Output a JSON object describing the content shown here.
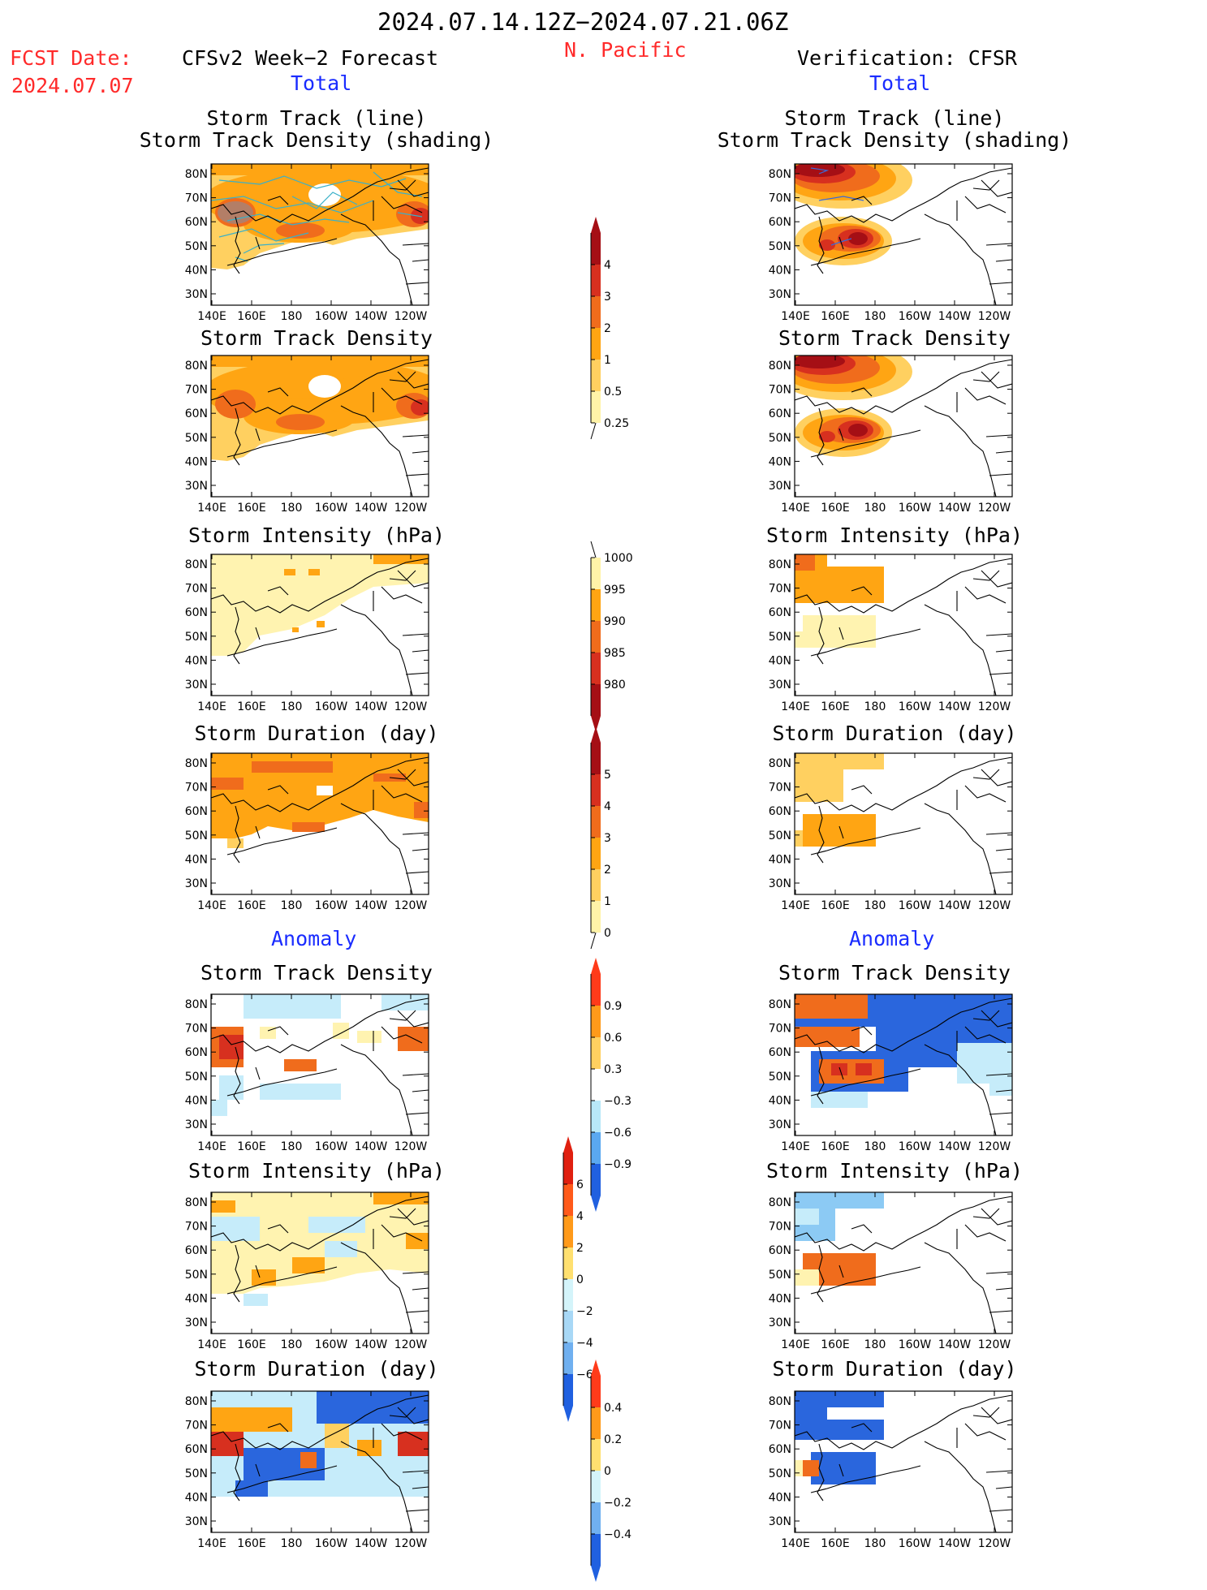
{
  "header": {
    "date_range": "2024.07.14.12Z−2024.07.21.06Z",
    "region": "N. Pacific",
    "fcst_label": "FCST Date:",
    "fcst_date": "2024.07.07",
    "left_title": "CFSv2 Week−2 Forecast",
    "right_title": "Verification: CFSR",
    "left_total": "Total",
    "right_total": "Total",
    "left_anomaly": "Anomaly",
    "right_anomaly": "Anomaly"
  },
  "axes": {
    "lat_labels": [
      "80N",
      "70N",
      "60N",
      "50N",
      "40N",
      "30N"
    ],
    "lon_labels": [
      "140E",
      "160E",
      "180",
      "160W",
      "140W",
      "120W"
    ]
  },
  "panels": {
    "row1": {
      "title_line1": "Storm Track (line)",
      "title_line2": "Storm Track Density (shading)"
    },
    "row2": {
      "title": "Storm Track Density"
    },
    "row3": {
      "title": "Storm Intensity (hPa)"
    },
    "row4": {
      "title": "Storm Duration (day)"
    },
    "row5": {
      "title": "Storm Track Density"
    },
    "row6": {
      "title": "Storm Intensity (hPa)"
    },
    "row7": {
      "title": "Storm Duration (day)"
    }
  },
  "colorbars": {
    "density": {
      "labels": [
        "4",
        "3",
        "2",
        "1",
        "0.5",
        "0.25"
      ],
      "colors": [
        "#a50f15",
        "#d7301f",
        "#f06c1c",
        "#ffa513",
        "#ffd060",
        "#fff3a8"
      ]
    },
    "intensity": {
      "labels": [
        "1000",
        "995",
        "990",
        "985",
        "980"
      ],
      "colors": [
        "#fff3a8",
        "#ffa513",
        "#f06c1c",
        "#d7301f",
        "#a50f15"
      ]
    },
    "duration": {
      "labels": [
        "5",
        "4",
        "3",
        "2",
        "1",
        "0"
      ],
      "colors": [
        "#a50f15",
        "#d7301f",
        "#f06c1c",
        "#ffa513",
        "#ffd060",
        "#fff3a8"
      ]
    },
    "anom_density": {
      "labels": [
        "0.9",
        "0.6",
        "0.3",
        "−0.3",
        "−0.6",
        "−0.9"
      ],
      "colors": [
        "#ff3b1a",
        "#ff9a1a",
        "#ffd060",
        "#ffffff",
        "#b8e8f8",
        "#5aa8f0",
        "#2060e0"
      ]
    },
    "anom_intensity": {
      "labels": [
        "6",
        "4",
        "2",
        "0",
        "−2",
        "−4",
        "−6"
      ],
      "colors": [
        "#e02010",
        "#ff5a1a",
        "#ff9a1a",
        "#ffe070",
        "#d4f4fa",
        "#a8d8f6",
        "#70b0f0",
        "#2060e0"
      ]
    },
    "anom_duration": {
      "labels": [
        "0.4",
        "0.2",
        "0",
        "−0.2",
        "−0.4"
      ],
      "colors": [
        "#ff3b1a",
        "#ff9a1a",
        "#ffe070",
        "#d4f4fa",
        "#70b0f0",
        "#2060e0"
      ]
    }
  },
  "map_colors": {
    "yellow": "#fff3b0",
    "light_orange": "#ffd060",
    "orange": "#ffa513",
    "dark_orange": "#f06c1c",
    "red": "#d7301f",
    "dark_red": "#a50f15",
    "pale_blue": "#c6ecfa",
    "light_blue": "#8ccaf4",
    "blue": "#2a66dd",
    "track_line": "#3ab0c8"
  }
}
